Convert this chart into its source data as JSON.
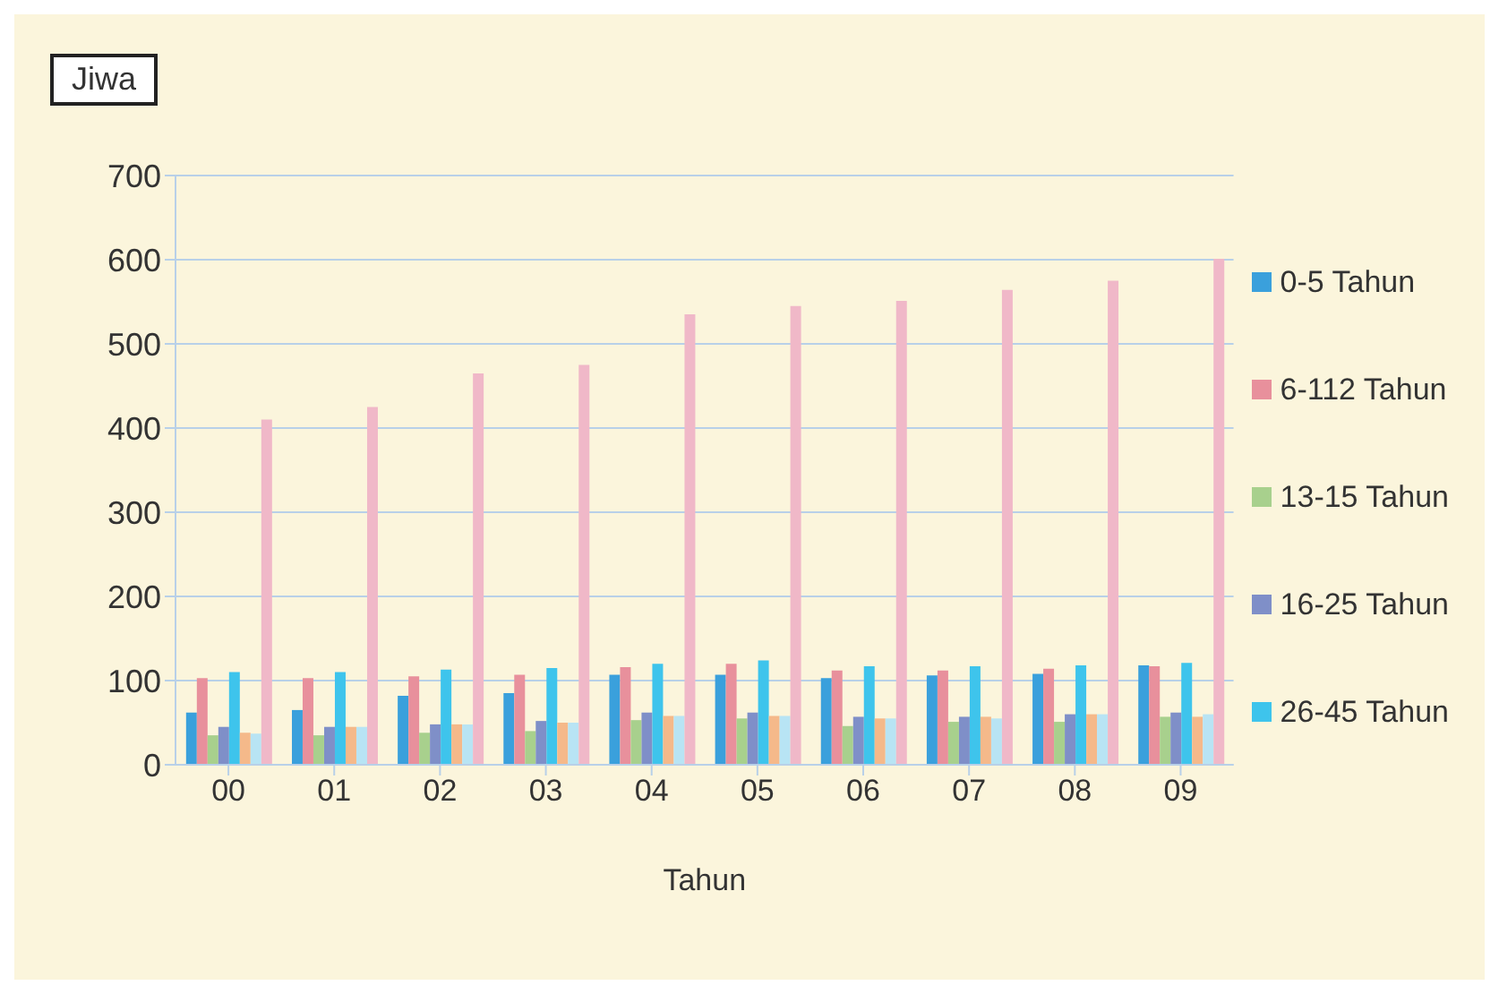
{
  "chart_data": {
    "type": "bar",
    "ylabel": "Jiwa",
    "xlabel": "Tahun",
    "categories": [
      "00",
      "01",
      "02",
      "03",
      "04",
      "05",
      "06",
      "07",
      "08",
      "09"
    ],
    "series": [
      {
        "name": "0-5 Tahun",
        "color": "#3aa0dc",
        "values": [
          62,
          65,
          82,
          85,
          107,
          107,
          103,
          106,
          108,
          118
        ]
      },
      {
        "name": "6-112 Tahun",
        "color": "#e8909c",
        "values": [
          103,
          103,
          105,
          107,
          116,
          120,
          112,
          112,
          114,
          117
        ]
      },
      {
        "name": "13-15 Tahun",
        "color": "#a8d08d",
        "values": [
          35,
          35,
          38,
          40,
          53,
          55,
          46,
          51,
          51,
          57
        ]
      },
      {
        "name": "16-25 Tahun",
        "color": "#7f8fc8",
        "values": [
          45,
          45,
          48,
          52,
          62,
          62,
          57,
          57,
          60,
          62
        ]
      },
      {
        "name": "26-45 Tahun",
        "color": "#3ec4ec",
        "values": [
          110,
          110,
          113,
          115,
          120,
          124,
          117,
          117,
          118,
          121
        ]
      },
      {
        "color": "#f5b98a",
        "values": [
          38,
          45,
          48,
          50,
          58,
          58,
          55,
          57,
          60,
          57
        ]
      },
      {
        "color": "#b8e4f4",
        "values": [
          37,
          45,
          48,
          50,
          58,
          58,
          55,
          55,
          60,
          60
        ]
      },
      {
        "color": "#f0b8c8",
        "values": [
          410,
          425,
          465,
          475,
          535,
          545,
          551,
          564,
          575,
          601
        ]
      }
    ],
    "ylim": [
      0,
      700
    ],
    "yticks": [
      0,
      100,
      200,
      300,
      400,
      500,
      600,
      700
    ],
    "grid": "y",
    "legend": "right"
  }
}
